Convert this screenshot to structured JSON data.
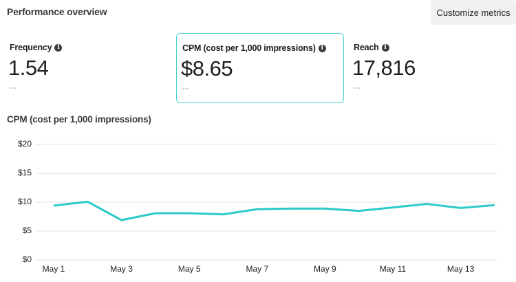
{
  "header": {
    "title": "Performance overview",
    "customize_label": "Customize metrics"
  },
  "metrics": [
    {
      "label": "Frequency",
      "value": "1.54",
      "comparison": "--",
      "selected": false,
      "info_icon": "info-icon"
    },
    {
      "label": "CPM (cost per 1,000 impressions)",
      "value": "$8.65",
      "comparison": "--",
      "selected": true,
      "info_icon": "info-icon"
    },
    {
      "label": "Reach",
      "value": "17,816",
      "comparison": "--",
      "selected": false,
      "info_icon": "info-icon"
    }
  ],
  "colors": {
    "accent": "#47d1d1",
    "line": "#2ec9c9",
    "grid": "#e6e6e6"
  },
  "chart_data": {
    "type": "line",
    "title": "CPM (cost per 1,000 impressions)",
    "xlabel": "",
    "ylabel": "",
    "x": [
      "May 1",
      "May 2",
      "May 3",
      "May 4",
      "May 5",
      "May 6",
      "May 7",
      "May 8",
      "May 9",
      "May 10",
      "May 11",
      "May 12",
      "May 13",
      "May 14"
    ],
    "series": [
      {
        "name": "CPM",
        "values": [
          9.4,
          10.1,
          6.9,
          8.1,
          8.1,
          7.9,
          8.8,
          8.9,
          8.9,
          8.5,
          9.1,
          9.7,
          9.0,
          9.5
        ]
      }
    ],
    "x_tick_labels": [
      "May 1",
      "May 3",
      "May 5",
      "May 7",
      "May 9",
      "May 11",
      "May 13"
    ],
    "y_tick_labels": [
      "$0",
      "$5",
      "$10",
      "$15",
      "$20"
    ],
    "y_ticks": [
      0,
      5,
      10,
      15,
      20
    ],
    "ylim": [
      0,
      20
    ],
    "grid": true,
    "legend": "none"
  }
}
